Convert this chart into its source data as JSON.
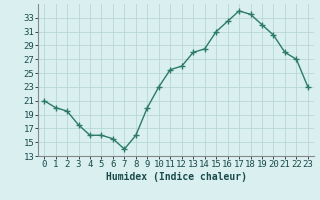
{
  "x": [
    0,
    1,
    2,
    3,
    4,
    5,
    6,
    7,
    8,
    9,
    10,
    11,
    12,
    13,
    14,
    15,
    16,
    17,
    18,
    19,
    20,
    21,
    22,
    23
  ],
  "y": [
    21,
    20,
    19.5,
    17.5,
    16,
    16,
    15.5,
    14,
    16,
    20,
    23,
    25.5,
    26,
    28,
    28.5,
    31,
    32.5,
    34,
    33.5,
    32,
    30.5,
    28,
    27,
    23
  ],
  "line_color": "#2d7a6a",
  "marker": "+",
  "bg_color": "#d9eff0",
  "grid_color": "#b8d8d8",
  "xlabel": "Humidex (Indice chaleur)",
  "ylim": [
    13,
    35
  ],
  "yticks": [
    13,
    15,
    17,
    19,
    21,
    23,
    25,
    27,
    29,
    31,
    33
  ],
  "xticks": [
    0,
    1,
    2,
    3,
    4,
    5,
    6,
    7,
    8,
    9,
    10,
    11,
    12,
    13,
    14,
    15,
    16,
    17,
    18,
    19,
    20,
    21,
    22,
    23
  ],
  "xlabel_fontsize": 7,
  "tick_fontsize": 6.5,
  "line_width": 1.0,
  "marker_size": 4
}
